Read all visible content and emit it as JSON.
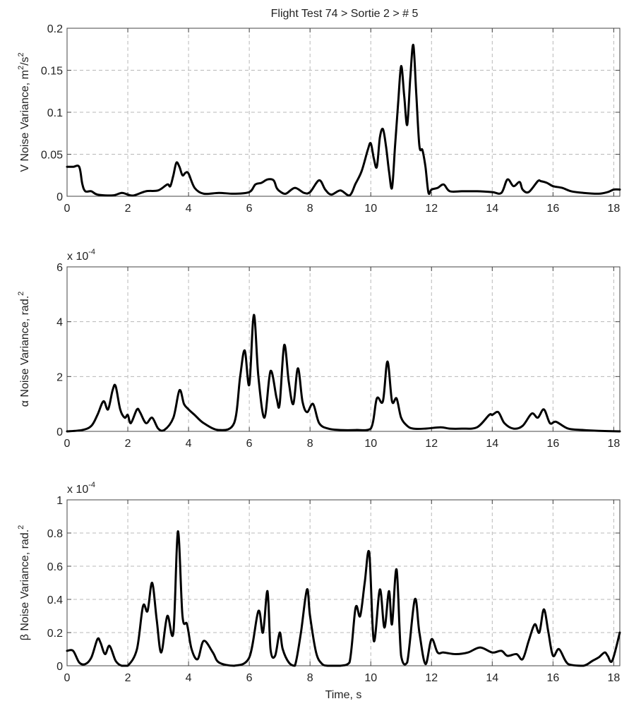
{
  "title": "Flight Test 74 > Sortie 2 > # 5",
  "chart_data": [
    {
      "type": "line",
      "title": "Flight Test 74 > Sortie 2 > # 5",
      "xlabel": "",
      "ylabel_main": "V Noise Variance, m",
      "ylabel_sup1": "2",
      "ylabel_mid": "/s",
      "ylabel_sup2": "2",
      "xlim": [
        0,
        18.2
      ],
      "ylim": [
        0,
        0.2
      ],
      "xticks": [
        0,
        2,
        4,
        6,
        8,
        10,
        12,
        14,
        16,
        18
      ],
      "yticks": [
        0,
        0.05,
        0.1,
        0.15,
        0.2
      ],
      "ytick_labels": [
        "0",
        "0.05",
        "0.1",
        "0.15",
        "0.2"
      ],
      "scale_label": "",
      "scale_exp": "",
      "grid": true,
      "series": [
        {
          "color": "#000000",
          "x": [
            0,
            0.2,
            0.4,
            0.5,
            0.6,
            0.8,
            1.0,
            1.5,
            1.8,
            2.0,
            2.2,
            2.6,
            3.0,
            3.3,
            3.4,
            3.5,
            3.6,
            3.7,
            3.8,
            3.9,
            4.0,
            4.2,
            4.5,
            5.0,
            5.5,
            6.0,
            6.2,
            6.4,
            6.6,
            6.8,
            6.9,
            7.0,
            7.2,
            7.5,
            7.8,
            8.0,
            8.3,
            8.5,
            8.7,
            9.0,
            9.3,
            9.5,
            9.7,
            9.9,
            10.0,
            10.1,
            10.2,
            10.3,
            10.4,
            10.5,
            10.6,
            10.7,
            10.8,
            10.9,
            11.0,
            11.1,
            11.2,
            11.3,
            11.4,
            11.5,
            11.6,
            11.7,
            11.8,
            11.9,
            12.0,
            12.2,
            12.4,
            12.6,
            13.0,
            13.5,
            14.0,
            14.3,
            14.5,
            14.7,
            14.9,
            15.0,
            15.2,
            15.5,
            15.6,
            15.8,
            16.0,
            16.3,
            16.6,
            17.0,
            17.5,
            17.8,
            18.0,
            18.2
          ],
          "y": [
            0.035,
            0.035,
            0.035,
            0.015,
            0.006,
            0.006,
            0.002,
            0.001,
            0.004,
            0.002,
            0.001,
            0.006,
            0.007,
            0.014,
            0.012,
            0.025,
            0.04,
            0.035,
            0.025,
            0.028,
            0.027,
            0.01,
            0.003,
            0.004,
            0.003,
            0.005,
            0.014,
            0.016,
            0.02,
            0.019,
            0.01,
            0.006,
            0.003,
            0.01,
            0.004,
            0.005,
            0.019,
            0.008,
            0.002,
            0.007,
            0.001,
            0.015,
            0.03,
            0.055,
            0.063,
            0.045,
            0.035,
            0.07,
            0.08,
            0.06,
            0.03,
            0.01,
            0.06,
            0.11,
            0.155,
            0.12,
            0.085,
            0.14,
            0.18,
            0.12,
            0.06,
            0.055,
            0.035,
            0.004,
            0.008,
            0.01,
            0.014,
            0.006,
            0.006,
            0.006,
            0.005,
            0.004,
            0.02,
            0.012,
            0.017,
            0.008,
            0.005,
            0.018,
            0.018,
            0.016,
            0.012,
            0.01,
            0.006,
            0.004,
            0.003,
            0.005,
            0.008,
            0.008
          ]
        }
      ]
    },
    {
      "type": "line",
      "xlabel": "",
      "ylabel_main": "α  Noise Variance, rad.",
      "ylabel_sup1": "2",
      "ylabel_mid": "",
      "ylabel_sup2": "",
      "xlim": [
        0,
        18.2
      ],
      "ylim": [
        0,
        6
      ],
      "xticks": [
        0,
        2,
        4,
        6,
        8,
        10,
        12,
        14,
        16,
        18
      ],
      "yticks": [
        0,
        2,
        4,
        6
      ],
      "ytick_labels": [
        "0",
        "2",
        "4",
        "6"
      ],
      "scale_label": "x 10",
      "scale_exp": "-4",
      "grid": true,
      "series": [
        {
          "color": "#000000",
          "x": [
            0,
            0.5,
            0.8,
            1.0,
            1.2,
            1.35,
            1.5,
            1.6,
            1.75,
            1.9,
            2.0,
            2.1,
            2.3,
            2.4,
            2.6,
            2.8,
            3.0,
            3.2,
            3.5,
            3.7,
            3.85,
            4.0,
            4.2,
            4.5,
            5.0,
            5.5,
            5.7,
            5.85,
            6.0,
            6.15,
            6.3,
            6.5,
            6.7,
            6.9,
            7.0,
            7.15,
            7.3,
            7.45,
            7.6,
            7.75,
            7.9,
            8.1,
            8.3,
            8.6,
            9.0,
            9.5,
            10.0,
            10.2,
            10.4,
            10.55,
            10.7,
            10.85,
            11.0,
            11.2,
            11.4,
            11.8,
            12.3,
            12.6,
            13.0,
            13.5,
            13.9,
            14.0,
            14.2,
            14.4,
            14.7,
            15.0,
            15.3,
            15.5,
            15.7,
            15.9,
            16.1,
            16.5,
            17.0,
            17.5,
            18.2
          ],
          "y": [
            0,
            0.05,
            0.2,
            0.6,
            1.1,
            0.8,
            1.5,
            1.65,
            0.8,
            0.5,
            0.6,
            0.3,
            0.8,
            0.7,
            0.3,
            0.5,
            0.1,
            0.05,
            0.5,
            1.5,
            1.0,
            0.8,
            0.6,
            0.3,
            0.05,
            0.3,
            2.0,
            2.95,
            1.7,
            4.25,
            2.0,
            0.5,
            2.2,
            1.2,
            1.0,
            3.15,
            1.8,
            1.0,
            2.3,
            1.1,
            0.7,
            1.0,
            0.3,
            0.1,
            0.05,
            0.05,
            0.1,
            1.2,
            1.1,
            2.55,
            1.1,
            1.2,
            0.5,
            0.2,
            0.1,
            0.1,
            0.15,
            0.1,
            0.1,
            0.15,
            0.6,
            0.6,
            0.7,
            0.3,
            0.1,
            0.2,
            0.65,
            0.5,
            0.8,
            0.3,
            0.35,
            0.1,
            0.05,
            0.02,
            0.0
          ]
        }
      ]
    },
    {
      "type": "line",
      "xlabel": "Time, s",
      "ylabel_main": "β  Noise Variance, rad.",
      "ylabel_sup1": "2",
      "ylabel_mid": "",
      "ylabel_sup2": "",
      "xlim": [
        0,
        18.2
      ],
      "ylim": [
        0,
        1
      ],
      "xticks": [
        0,
        2,
        4,
        6,
        8,
        10,
        12,
        14,
        16,
        18
      ],
      "yticks": [
        0,
        0.2,
        0.4,
        0.6,
        0.8,
        1
      ],
      "ytick_labels": [
        "0",
        "0.2",
        "0.4",
        "0.6",
        "0.8",
        "1"
      ],
      "scale_label": "x 10",
      "scale_exp": "-4",
      "grid": true,
      "series": [
        {
          "color": "#000000",
          "x": [
            0,
            0.2,
            0.4,
            0.6,
            0.8,
            1.0,
            1.1,
            1.25,
            1.4,
            1.6,
            1.8,
            2.0,
            2.3,
            2.5,
            2.65,
            2.8,
            2.95,
            3.1,
            3.3,
            3.5,
            3.65,
            3.8,
            3.95,
            4.1,
            4.3,
            4.5,
            4.8,
            5.0,
            5.5,
            6.0,
            6.3,
            6.45,
            6.6,
            6.7,
            6.85,
            7.0,
            7.1,
            7.3,
            7.5,
            7.7,
            7.9,
            8.0,
            8.2,
            8.4,
            8.6,
            9.0,
            9.3,
            9.5,
            9.65,
            9.8,
            9.95,
            10.1,
            10.3,
            10.45,
            10.6,
            10.7,
            10.85,
            11.0,
            11.2,
            11.45,
            11.6,
            11.8,
            12.0,
            12.2,
            12.4,
            12.8,
            13.2,
            13.6,
            14.0,
            14.3,
            14.5,
            14.8,
            15.0,
            15.2,
            15.4,
            15.55,
            15.7,
            15.85,
            16.0,
            16.2,
            16.5,
            17.0,
            17.3,
            17.5,
            17.7,
            17.8,
            17.95,
            18.2
          ],
          "y": [
            0.09,
            0.09,
            0.02,
            0.01,
            0.05,
            0.16,
            0.14,
            0.07,
            0.12,
            0.03,
            0.0,
            0.0,
            0.1,
            0.36,
            0.33,
            0.5,
            0.28,
            0.08,
            0.3,
            0.2,
            0.81,
            0.3,
            0.25,
            0.1,
            0.04,
            0.15,
            0.08,
            0.02,
            0.0,
            0.05,
            0.33,
            0.2,
            0.45,
            0.1,
            0.06,
            0.2,
            0.1,
            0.02,
            0.0,
            0.2,
            0.46,
            0.3,
            0.08,
            0.01,
            0.0,
            0.0,
            0.02,
            0.35,
            0.3,
            0.5,
            0.68,
            0.15,
            0.46,
            0.23,
            0.45,
            0.25,
            0.58,
            0.06,
            0.02,
            0.4,
            0.2,
            0.01,
            0.16,
            0.08,
            0.08,
            0.07,
            0.08,
            0.11,
            0.08,
            0.09,
            0.06,
            0.07,
            0.04,
            0.15,
            0.25,
            0.2,
            0.34,
            0.2,
            0.06,
            0.1,
            0.01,
            0.0,
            0.03,
            0.05,
            0.08,
            0.06,
            0.03,
            0.2
          ]
        }
      ]
    }
  ]
}
